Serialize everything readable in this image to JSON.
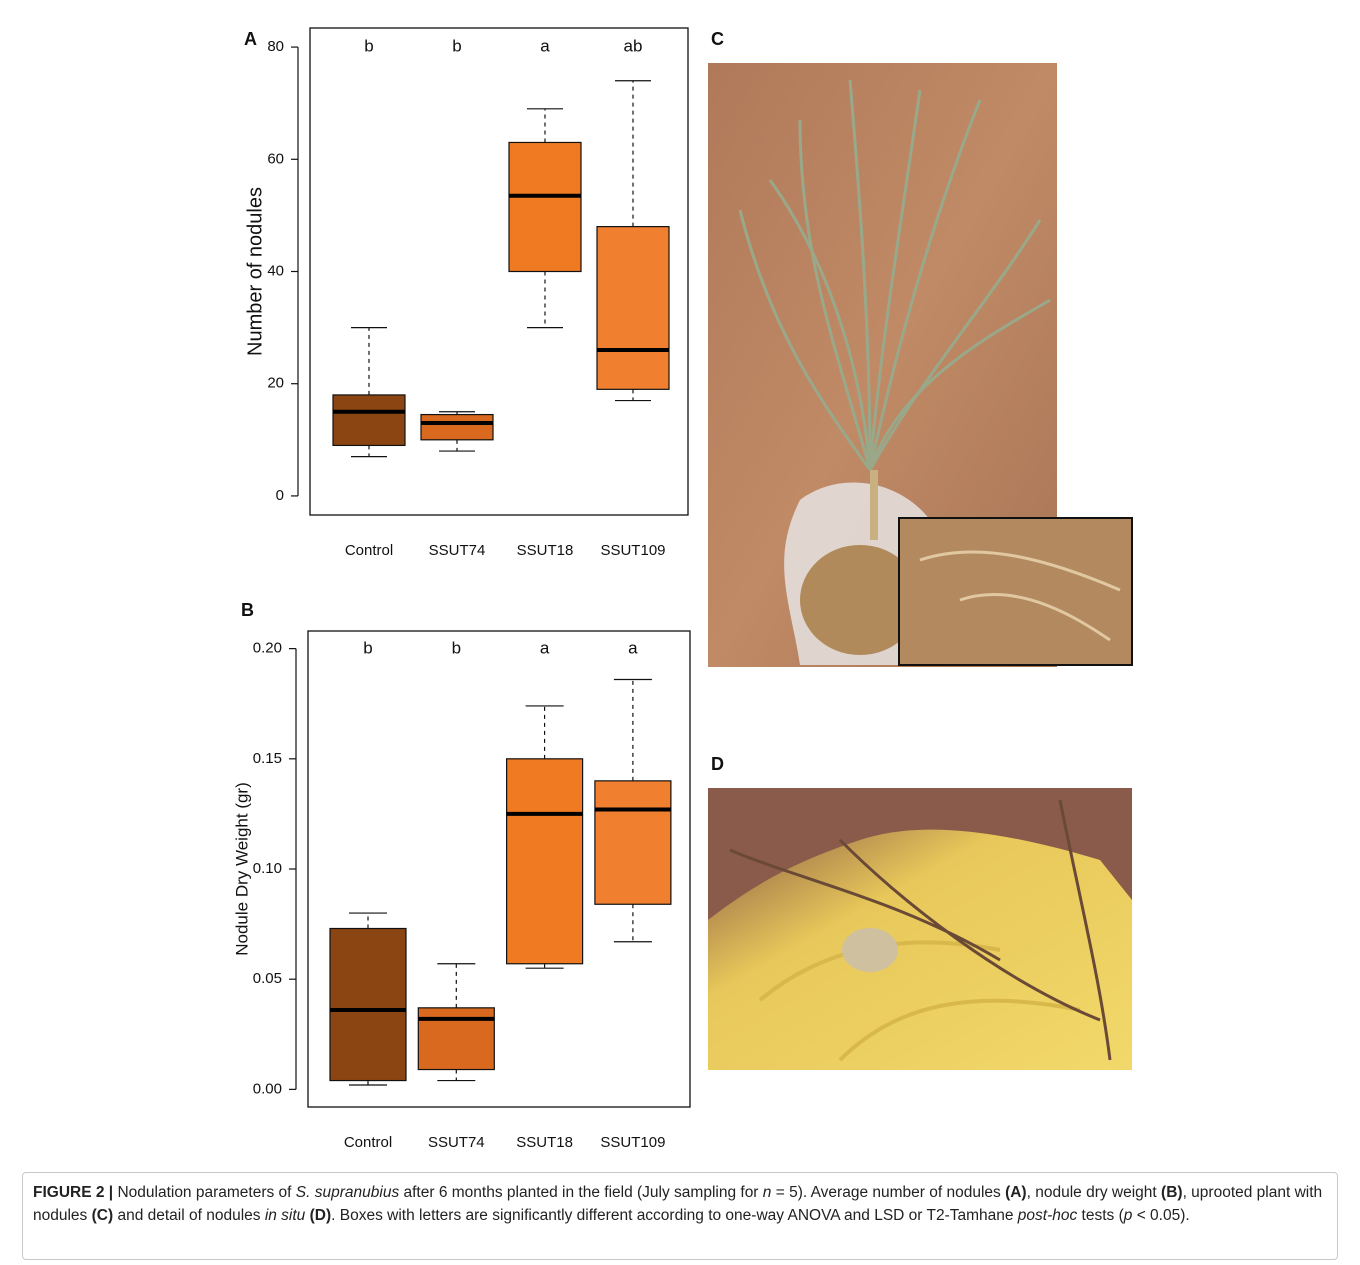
{
  "chart_data": [
    {
      "type": "box",
      "panel_label": "A",
      "ylabel": "Number of nodules",
      "categories": [
        "Control",
        "SSUT74",
        "SSUT18",
        "SSUT109"
      ],
      "colors": [
        "#8b4513",
        "#d9691f",
        "#f07a22",
        "#f08030"
      ],
      "boxes": [
        {
          "min": 7,
          "q1": 9,
          "median": 15,
          "q3": 18,
          "max": 30
        },
        {
          "min": 8,
          "q1": 10,
          "median": 13,
          "q3": 14.5,
          "max": 15
        },
        {
          "min": 30,
          "q1": 40,
          "median": 53.5,
          "q3": 63,
          "max": 69
        },
        {
          "min": 17,
          "q1": 19,
          "median": 26,
          "q3": 48,
          "max": 74
        }
      ],
      "annotations": [
        "b",
        "b",
        "a",
        "ab"
      ],
      "ylim": [
        -3.4,
        83.4
      ],
      "yticks": [
        0,
        20,
        40,
        60,
        80
      ]
    },
    {
      "type": "box",
      "panel_label": "B",
      "ylabel": "Nodule Dry Weight (gr)",
      "categories": [
        "Control",
        "SSUT74",
        "SSUT18",
        "SSUT109"
      ],
      "colors": [
        "#8b4513",
        "#d9691f",
        "#f07a22",
        "#f08030"
      ],
      "boxes": [
        {
          "min": 0.002,
          "q1": 0.004,
          "median": 0.036,
          "q3": 0.073,
          "max": 0.08
        },
        {
          "min": 0.004,
          "q1": 0.009,
          "median": 0.032,
          "q3": 0.037,
          "max": 0.057
        },
        {
          "min": 0.055,
          "q1": 0.057,
          "median": 0.125,
          "q3": 0.15,
          "max": 0.174
        },
        {
          "min": 0.067,
          "q1": 0.084,
          "median": 0.127,
          "q3": 0.14,
          "max": 0.186
        }
      ],
      "annotations": [
        "b",
        "b",
        "a",
        "a"
      ],
      "ylim": [
        -0.008,
        0.208
      ],
      "yticks": [
        {
          "value": 0,
          "label": "0.00"
        },
        {
          "value": 0.05,
          "label": "0.05"
        },
        {
          "value": 0.1,
          "label": "0.10"
        },
        {
          "value": 0.15,
          "label": "0.15"
        },
        {
          "value": 0.2,
          "label": "0.20"
        }
      ]
    }
  ],
  "photo_panels": [
    {
      "label": "C"
    },
    {
      "label": "D"
    }
  ],
  "caption": [
    "FIGURE 2 |",
    " Nodulation parameters of ",
    "S. supranubius",
    " after 6 months planted in the field (July sampling for ",
    "n",
    " = 5). Average number of nodules ",
    "(A)",
    ", nodule dry weight ",
    "(B)",
    ", uprooted plant with nodules ",
    "(C)",
    " and detail of nodules ",
    "in situ",
    " (D)",
    ". Boxes with letters are significantly different according to one-way ANOVA and LSD or T2-Tamhane ",
    "post-hoc",
    " tests (",
    "p",
    " < 0.05)."
  ]
}
